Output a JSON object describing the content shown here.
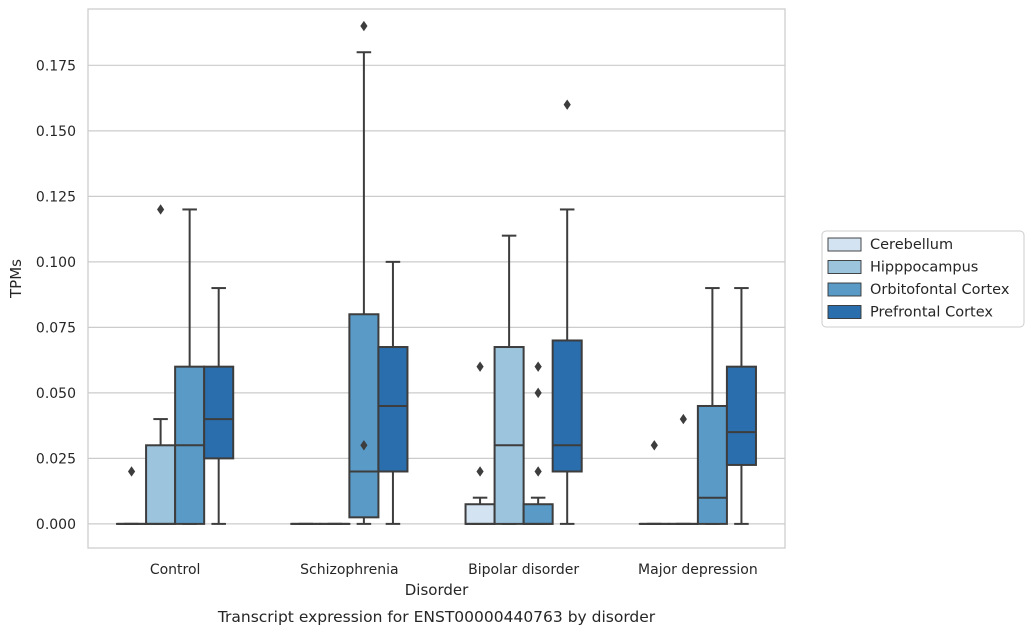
{
  "caption": "Transcript expression for ENST00000440763 by disorder",
  "chart_data": {
    "type": "box",
    "xlabel": "Disorder",
    "ylabel": "TPMs",
    "ylim": [
      -0.0092,
      0.1965
    ],
    "yticks": [
      "0.000",
      "0.025",
      "0.050",
      "0.075",
      "0.100",
      "0.125",
      "0.150",
      "0.175"
    ],
    "ytick_values": [
      0,
      0.025,
      0.05,
      0.075,
      0.1,
      0.125,
      0.15,
      0.175
    ],
    "grid": "horizontal",
    "legend_position": "right",
    "categories": [
      "Control",
      "Schizophrenia",
      "Bipolar disorder",
      "Major depression"
    ],
    "series": [
      {
        "name": "Cerebellum",
        "color": "#d3e3f2",
        "boxes": [
          {
            "min": 0,
            "q1": 0,
            "median": 0,
            "q3": 0,
            "max": 0,
            "outliers": [
              0.02
            ]
          },
          {
            "min": 0,
            "q1": 0,
            "median": 0,
            "q3": 0,
            "max": 0,
            "outliers": []
          },
          {
            "min": 0,
            "q1": 0,
            "median": 0,
            "q3": 0.0075,
            "max": 0.01,
            "outliers": [
              0.02,
              0.06
            ]
          },
          {
            "min": 0,
            "q1": 0,
            "median": 0,
            "q3": 0,
            "max": 0,
            "outliers": [
              0.03
            ]
          }
        ]
      },
      {
        "name": "Hipppocampus",
        "color": "#9cc4dd",
        "boxes": [
          {
            "min": 0,
            "q1": 0,
            "median": 0,
            "q3": 0.03,
            "max": 0.04,
            "outliers": [
              0.12
            ]
          },
          {
            "min": 0,
            "q1": 0,
            "median": 0,
            "q3": 0,
            "max": 0,
            "outliers": []
          },
          {
            "min": 0,
            "q1": 0,
            "median": 0.03,
            "q3": 0.0675,
            "max": 0.11,
            "outliers": []
          },
          {
            "min": 0,
            "q1": 0,
            "median": 0,
            "q3": 0,
            "max": 0,
            "outliers": [
              0.04
            ]
          }
        ]
      },
      {
        "name": "Orbitofontal Cortex",
        "color": "#5a9ac7",
        "boxes": [
          {
            "min": 0,
            "q1": 0,
            "median": 0.03,
            "q3": 0.06,
            "max": 0.12,
            "outliers": []
          },
          {
            "min": 0,
            "q1": 0.0025,
            "median": 0.02,
            "q3": 0.08,
            "max": 0.18,
            "outliers": [
              0.03,
              0.19
            ]
          },
          {
            "min": 0,
            "q1": 0,
            "median": 0,
            "q3": 0.0075,
            "max": 0.01,
            "outliers": [
              0.02,
              0.05,
              0.06
            ]
          },
          {
            "min": 0,
            "q1": 0,
            "median": 0.01,
            "q3": 0.045,
            "max": 0.09,
            "outliers": []
          }
        ]
      },
      {
        "name": "Prefrontal Cortex",
        "color": "#2a6ead",
        "boxes": [
          {
            "min": 0,
            "q1": 0.025,
            "median": 0.04,
            "q3": 0.06,
            "max": 0.09,
            "outliers": []
          },
          {
            "min": 0,
            "q1": 0.02,
            "median": 0.045,
            "q3": 0.0675,
            "max": 0.1,
            "outliers": []
          },
          {
            "min": 0,
            "q1": 0.02,
            "median": 0.03,
            "q3": 0.07,
            "max": 0.12,
            "outliers": [
              0.16
            ]
          },
          {
            "min": 0,
            "q1": 0.0225,
            "median": 0.035,
            "q3": 0.06,
            "max": 0.09,
            "outliers": []
          }
        ]
      }
    ]
  }
}
